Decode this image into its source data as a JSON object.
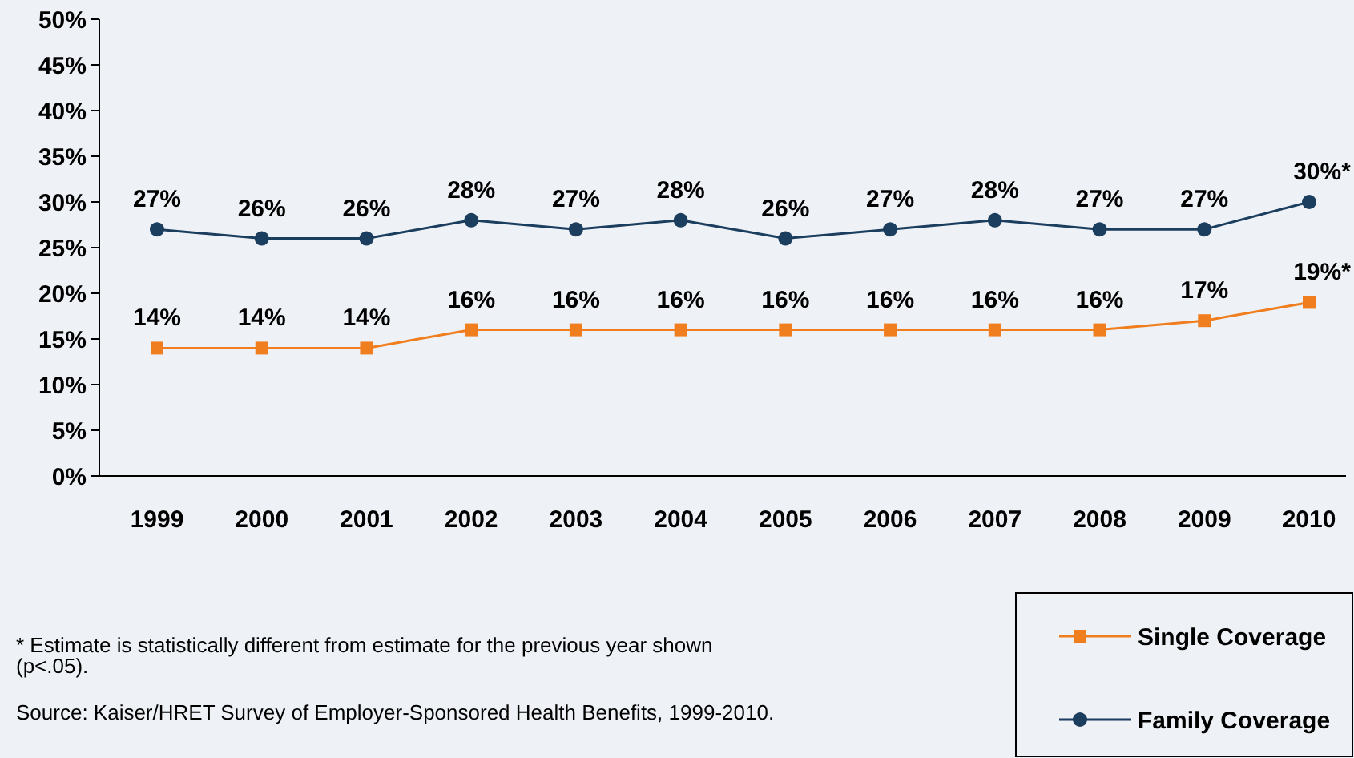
{
  "chart_data": {
    "type": "line",
    "categories": [
      "1999",
      "2000",
      "2001",
      "2002",
      "2003",
      "2004",
      "2005",
      "2006",
      "2007",
      "2008",
      "2009",
      "2010"
    ],
    "series": [
      {
        "name": "Single Coverage",
        "color": "#f07e1e",
        "marker": "square",
        "values": [
          14,
          14,
          14,
          16,
          16,
          16,
          16,
          16,
          16,
          16,
          17,
          19
        ],
        "value_labels": [
          "14%",
          "14%",
          "14%",
          "16%",
          "16%",
          "16%",
          "16%",
          "16%",
          "16%",
          "16%",
          "17%",
          "19%*"
        ]
      },
      {
        "name": "Family Coverage",
        "color": "#1b3d5e",
        "marker": "circle",
        "values": [
          27,
          26,
          26,
          28,
          27,
          28,
          26,
          27,
          28,
          27,
          27,
          30
        ],
        "value_labels": [
          "27%",
          "26%",
          "26%",
          "28%",
          "27%",
          "28%",
          "26%",
          "27%",
          "28%",
          "27%",
          "27%",
          "30%*"
        ]
      }
    ],
    "ylim": [
      0,
      50
    ],
    "yticks": [
      {
        "value": 0,
        "label": "0%"
      },
      {
        "value": 5,
        "label": "5%"
      },
      {
        "value": 10,
        "label": "10%"
      },
      {
        "value": 15,
        "label": "15%"
      },
      {
        "value": 20,
        "label": "20%"
      },
      {
        "value": 25,
        "label": "25%"
      },
      {
        "value": 30,
        "label": "30%"
      },
      {
        "value": 35,
        "label": "35%"
      },
      {
        "value": 40,
        "label": "40%"
      },
      {
        "value": 45,
        "label": "45%"
      },
      {
        "value": 50,
        "label": "50%"
      }
    ],
    "grid": false,
    "legend": "bottom right",
    "annotations": [
      "* Estimate is statistically different from estimate for the previous year shown (p<.05).",
      "Source:  Kaiser/HRET Survey of Employer-Sponsored Health Benefits, 1999-2010."
    ]
  }
}
